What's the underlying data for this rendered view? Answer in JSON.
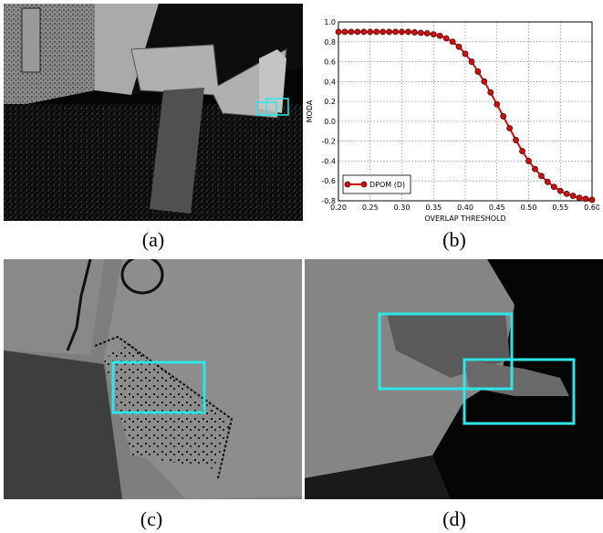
{
  "captions": {
    "a": "(a)",
    "b": "(b)",
    "c": "(c)",
    "d": "(d)"
  },
  "colors": {
    "bbox": "#2ee6e6",
    "series": "#cc1111",
    "marker_edge": "#550000"
  },
  "icons": {
    "legend": "line-with-circle-marker-icon"
  },
  "chart_data": {
    "type": "line",
    "title": "",
    "xlabel": "OVERLAP THRESHOLD",
    "ylabel": "MODA",
    "xlim": [
      0.2,
      0.6
    ],
    "ylim": [
      -0.8,
      1.0
    ],
    "xticks": [
      "0.20",
      "0.25",
      "0.30",
      "0.35",
      "0.40",
      "0.45",
      "0.50",
      "0.55",
      "0.60"
    ],
    "yticks": [
      "1.0",
      "0.8",
      "0.6",
      "0.4",
      "0.2",
      "0.0",
      "-0.2",
      "-0.4",
      "-0.6",
      "-0.8"
    ],
    "grid": true,
    "legend": "bottom-left",
    "series": [
      {
        "name": "DPOM (D)",
        "x": [
          0.2,
          0.21,
          0.22,
          0.23,
          0.24,
          0.25,
          0.26,
          0.27,
          0.28,
          0.29,
          0.3,
          0.31,
          0.32,
          0.33,
          0.34,
          0.35,
          0.36,
          0.37,
          0.38,
          0.39,
          0.4,
          0.41,
          0.42,
          0.43,
          0.44,
          0.45,
          0.46,
          0.47,
          0.48,
          0.49,
          0.5,
          0.51,
          0.52,
          0.53,
          0.54,
          0.55,
          0.56,
          0.57,
          0.58,
          0.59,
          0.6
        ],
        "y": [
          0.9,
          0.9,
          0.9,
          0.9,
          0.9,
          0.9,
          0.9,
          0.9,
          0.9,
          0.9,
          0.9,
          0.9,
          0.895,
          0.89,
          0.885,
          0.875,
          0.86,
          0.835,
          0.8,
          0.75,
          0.68,
          0.6,
          0.5,
          0.4,
          0.29,
          0.17,
          0.05,
          -0.07,
          -0.19,
          -0.3,
          -0.4,
          -0.48,
          -0.55,
          -0.61,
          -0.66,
          -0.7,
          -0.73,
          -0.75,
          -0.77,
          -0.78,
          -0.79
        ]
      }
    ]
  }
}
